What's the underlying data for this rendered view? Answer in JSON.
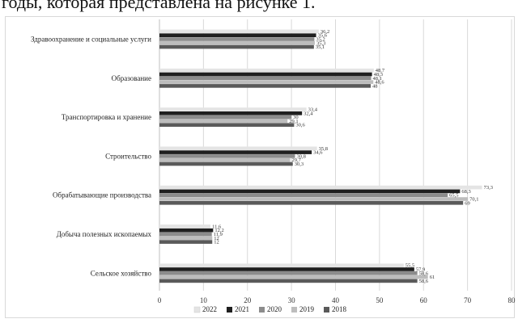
{
  "caption_fragment": "годы, которая представлена на рисунке 1.",
  "chart_data": {
    "type": "bar",
    "orientation": "horizontal",
    "categories": [
      "Здравоохранение и социальные услуги",
      "Образование",
      "Транспортировка и хранение",
      "Строительство",
      "Обрабатывающие производства",
      "Добыча полезных ископаемых",
      "Сельское хозяйство"
    ],
    "series": [
      {
        "name": "2022",
        "color": "#e4e4e4",
        "values": [
          36.2,
          48.7,
          33.4,
          35.8,
          73.3,
          11.6,
          55.5
        ],
        "labels": [
          "36,2",
          "48,7",
          "33,4",
          "35,8",
          "73,3",
          "11,6",
          "55,5"
        ]
      },
      {
        "name": "2021",
        "color": "#1f1f1f",
        "values": [
          35.6,
          48.3,
          32.4,
          34.6,
          68.3,
          12.2,
          57.9
        ],
        "labels": [
          "35,6",
          "48,3",
          "32,4",
          "34,6",
          "68,3",
          "12,2",
          "57,9"
        ]
      },
      {
        "name": "2020",
        "color": "#8c8c8c",
        "values": [
          35.2,
          48.1,
          30,
          30.8,
          65.5,
          11.9,
          58.6
        ],
        "labels": [
          "35,2",
          "48,1",
          "30",
          "30,8",
          "65,5",
          "11,9",
          "58,6"
        ]
      },
      {
        "name": "2019",
        "color": "#bdbdbd",
        "values": [
          35.3,
          48.6,
          29.1,
          29.7,
          70.1,
          12,
          61
        ],
        "labels": [
          "35,3",
          "48,6",
          "29,1",
          "29,7",
          "70,1",
          "12",
          "61"
        ]
      },
      {
        "name": "2018",
        "color": "#5a5a5a",
        "values": [
          35.1,
          48,
          30.6,
          30.3,
          69,
          12,
          58.6
        ],
        "labels": [
          "35,1",
          "48",
          "30,6",
          "30,3",
          "69",
          "12",
          "58,6"
        ]
      }
    ],
    "xlim": [
      0,
      80
    ],
    "xticks": [
      0,
      10,
      20,
      30,
      40,
      50,
      60,
      70,
      80
    ],
    "xtick_labels": [
      "0",
      "10",
      "20",
      "30",
      "40",
      "50",
      "60",
      "70",
      "80"
    ],
    "grid": "vertical",
    "legend_position": "bottom",
    "title": "",
    "xlabel": "",
    "ylabel": ""
  }
}
